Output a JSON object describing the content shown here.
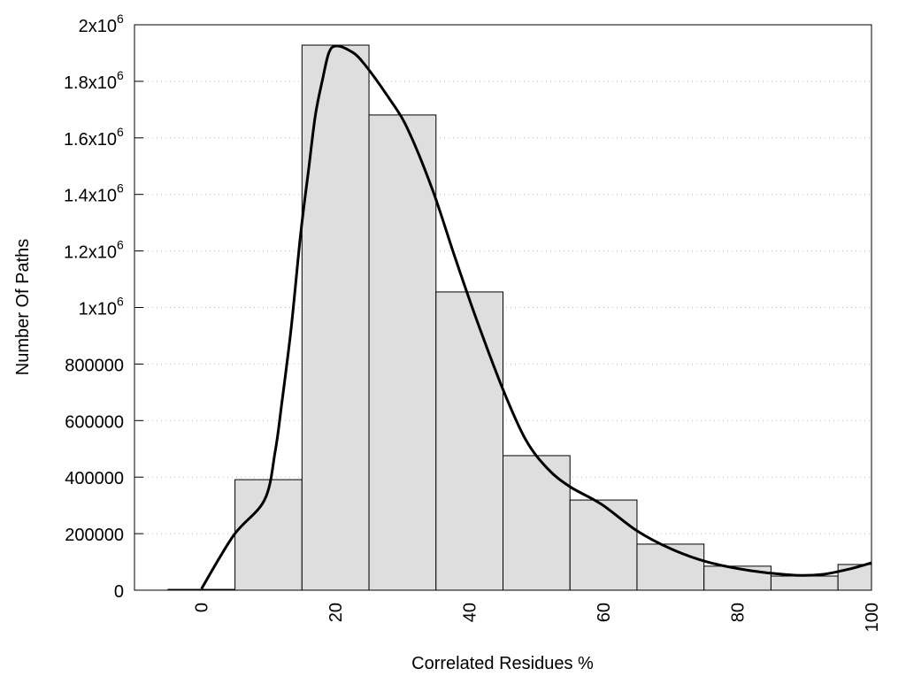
{
  "chart_data": {
    "type": "bar",
    "title": "",
    "xlabel": "Correlated Residues %",
    "ylabel": "Number Of Paths",
    "xlim": [
      -10,
      100
    ],
    "ylim": [
      0,
      2000000
    ],
    "grid": "horizontal dotted",
    "bar_width": 10,
    "bar_color": "#dedede",
    "categories": [
      0,
      10,
      20,
      30,
      40,
      50,
      60,
      70,
      80,
      90,
      100
    ],
    "values": [
      3000,
      391000,
      1928000,
      1681000,
      1055000,
      476000,
      319000,
      163000,
      85000,
      50000,
      91000
    ],
    "x_ticks": [
      {
        "value": 0,
        "label": "0"
      },
      {
        "value": 20,
        "label": "20"
      },
      {
        "value": 40,
        "label": "40"
      },
      {
        "value": 60,
        "label": "60"
      },
      {
        "value": 80,
        "label": "80"
      },
      {
        "value": 100,
        "label": "100"
      }
    ],
    "y_ticks": [
      {
        "value": 0,
        "label": "0"
      },
      {
        "value": 200000,
        "label": "200000"
      },
      {
        "value": 400000,
        "label": "400000"
      },
      {
        "value": 600000,
        "label": "600000"
      },
      {
        "value": 800000,
        "label": "800000"
      },
      {
        "value": 1000000,
        "label": "1x10",
        "exp": "6"
      },
      {
        "value": 1200000,
        "label": "1.2x10",
        "exp": "6"
      },
      {
        "value": 1400000,
        "label": "1.4x10",
        "exp": "6"
      },
      {
        "value": 1600000,
        "label": "1.6x10",
        "exp": "6"
      },
      {
        "value": 1800000,
        "label": "1.8x10",
        "exp": "6"
      },
      {
        "value": 2000000,
        "label": "2x10",
        "exp": "6"
      }
    ],
    "curve": {
      "name": "smoothed density",
      "color": "#000000",
      "x": [
        0,
        4.8,
        9.4,
        11,
        12,
        13.4,
        14.8,
        16,
        17,
        18.1,
        19,
        20,
        22,
        24,
        28,
        30.8,
        34.5,
        37.8,
        41,
        45,
        48.4,
        51.7,
        55,
        59.7,
        65,
        70,
        75.5,
        82,
        88.7,
        92.7,
        96.7,
        100
      ],
      "y": [
        5000,
        194000,
        319000,
        491000,
        664000,
        930000,
        1260000,
        1490000,
        1680000,
        1810000,
        1900000,
        1925000,
        1910000,
        1870000,
        1740000,
        1630000,
        1415000,
        1180000,
        961000,
        710000,
        532000,
        429000,
        366000,
        304000,
        210000,
        147000,
        100000,
        69000,
        53000,
        56000,
        75000,
        97000
      ]
    }
  }
}
